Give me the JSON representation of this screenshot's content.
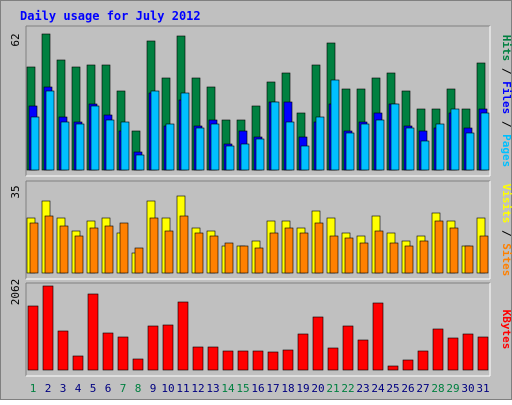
{
  "chart_data": {
    "type": "bar",
    "title": "Daily usage for July 2012",
    "categories": [
      "1",
      "2",
      "3",
      "4",
      "5",
      "6",
      "7",
      "8",
      "9",
      "10",
      "11",
      "12",
      "13",
      "14",
      "15",
      "16",
      "17",
      "18",
      "19",
      "20",
      "21",
      "22",
      "23",
      "24",
      "25",
      "26",
      "27",
      "28",
      "29",
      "30",
      "31"
    ],
    "weekend_days": [
      "1",
      "7",
      "8",
      "14",
      "15",
      "21",
      "22",
      "28",
      "29"
    ],
    "panels": [
      {
        "id": "hits",
        "ymax_label": "62",
        "ymax": 62,
        "series": [
          {
            "name": "Hits",
            "color": "#008040",
            "values": [
              47,
              62,
              50,
              47,
              48,
              48,
              36,
              18,
              59,
              42,
              61,
              42,
              38,
              23,
              23,
              29,
              40,
              44,
              26,
              48,
              58,
              37,
              37,
              42,
              44,
              36,
              28,
              28,
              37,
              28,
              49
            ]
          },
          {
            "name": "Files",
            "color": "#0000ff",
            "values": [
              29,
              38,
              24,
              22,
              30,
              25,
              18,
              8,
              35,
              20,
              32,
              20,
              23,
              12,
              18,
              15,
              31,
              31,
              15,
              22,
              30,
              18,
              22,
              26,
              30,
              20,
              18,
              19,
              26,
              19,
              28
            ]
          },
          {
            "name": "Pages",
            "color": "#00c0ff",
            "values": [
              24,
              36,
              22,
              21,
              29,
              23,
              22,
              7,
              36,
              21,
              35,
              19,
              21,
              11,
              12,
              14,
              31,
              22,
              11,
              24,
              41,
              17,
              21,
              23,
              30,
              19,
              13,
              21,
              28,
              17,
              26
            ]
          }
        ]
      },
      {
        "id": "visits",
        "ymax_label": "35",
        "ymax": 35,
        "series": [
          {
            "name": "Visits",
            "color": "#ffff00",
            "values": [
              22,
              29,
              22,
              17,
              21,
              22,
              16,
              8,
              29,
              22,
              31,
              18,
              17,
              11,
              11,
              13,
              21,
              21,
              18,
              25,
              22,
              16,
              15,
              23,
              16,
              13,
              15,
              24,
              21,
              11,
              22
            ]
          },
          {
            "name": "Sites",
            "color": "#ff8000",
            "values": [
              20,
              23,
              19,
              15,
              18,
              19,
              20,
              10,
              22,
              17,
              23,
              16,
              15,
              12,
              11,
              10,
              16,
              18,
              16,
              20,
              15,
              14,
              12,
              17,
              12,
              11,
              13,
              21,
              18,
              11,
              15
            ]
          }
        ]
      },
      {
        "id": "kbytes",
        "ymax_label": "2062",
        "ymax": 2062,
        "series": [
          {
            "name": "KBytes",
            "color": "#ff0000",
            "values": [
              1560,
              2062,
              950,
              340,
              1860,
              910,
              800,
              270,
              1080,
              1110,
              1670,
              560,
              560,
              460,
              460,
              460,
              440,
              480,
              890,
              1300,
              540,
              1080,
              730,
              1650,
              100,
              240,
              460,
              1000,
              790,
              880,
              810
            ]
          }
        ]
      }
    ],
    "right_labels": {
      "panel1": [
        {
          "text": "Hits",
          "color": "#008040"
        },
        {
          "text": " / ",
          "color": "#000000"
        },
        {
          "text": "Files",
          "color": "#0000ff"
        },
        {
          "text": " / ",
          "color": "#000000"
        },
        {
          "text": "Pages",
          "color": "#00c0ff"
        }
      ],
      "panel2": [
        {
          "text": "Visits",
          "color": "#ffff00"
        },
        {
          "text": " / ",
          "color": "#000000"
        },
        {
          "text": "Sites",
          "color": "#ff8000"
        }
      ],
      "panel3": [
        {
          "text": "KBytes",
          "color": "#ff0000"
        }
      ]
    },
    "colors": {
      "title": "#0000ff",
      "background": "#c0c0c0",
      "weekday_label": "#000080",
      "weekend_label": "#008040"
    }
  }
}
